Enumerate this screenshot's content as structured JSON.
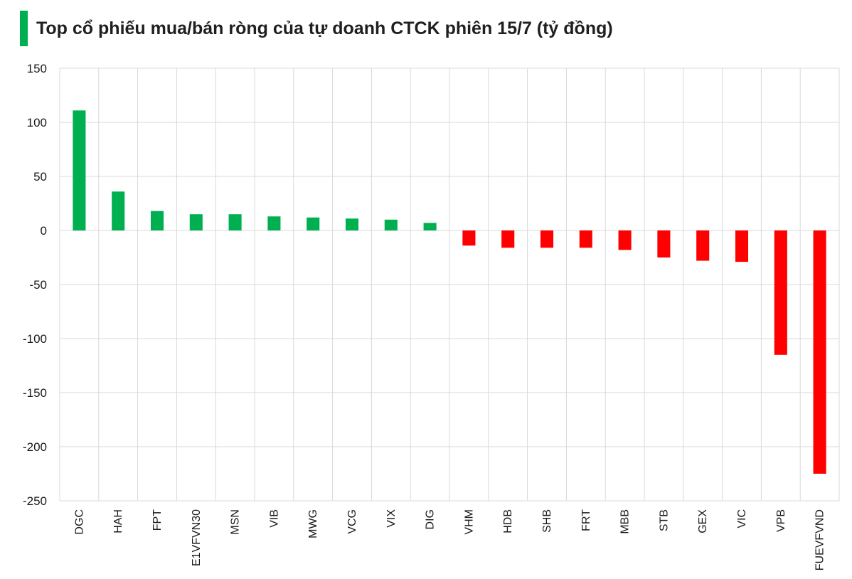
{
  "title": "Top cổ phiếu mua/bán ròng của tự doanh CTCK phiên 15/7 (tỷ đồng)",
  "colors": {
    "positive": "#00b050",
    "negative": "#ff0000",
    "accent": "#00b050",
    "grid": "#d9d9d9"
  },
  "chart_data": {
    "type": "bar",
    "title": "Top cổ phiếu mua/bán ròng của tự doanh CTCK phiên 15/7 (tỷ đồng)",
    "xlabel": "",
    "ylabel": "",
    "ylim": [
      -250,
      150
    ],
    "yticks": [
      150,
      100,
      50,
      0,
      -50,
      -100,
      -150,
      -200,
      -250
    ],
    "grid": true,
    "legend": "none",
    "categories": [
      "DGC",
      "HAH",
      "FPT",
      "E1VFVN30",
      "MSN",
      "VIB",
      "MWG",
      "VCG",
      "VIX",
      "DIG",
      "VHM",
      "HDB",
      "SHB",
      "FRT",
      "MBB",
      "STB",
      "GEX",
      "VIC",
      "VPB",
      "FUEVFVND"
    ],
    "values": [
      111,
      36,
      18,
      15,
      15,
      13,
      12,
      11,
      10,
      7,
      -14,
      -16,
      -16,
      -16,
      -18,
      -25,
      -28,
      -29,
      -115,
      -225
    ]
  }
}
